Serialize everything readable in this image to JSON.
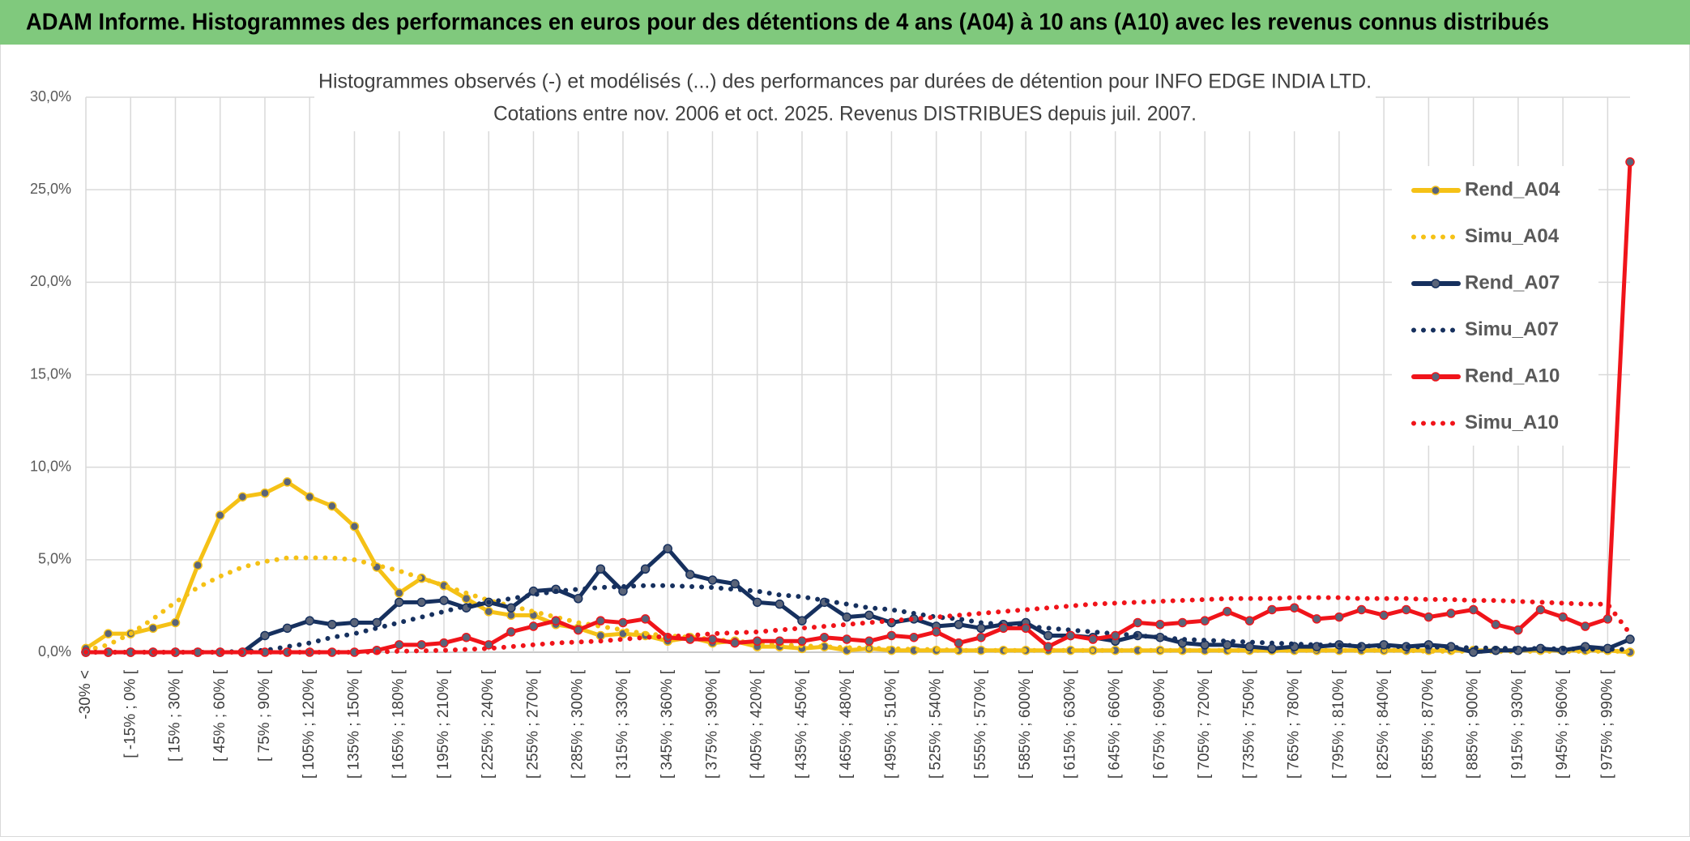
{
  "chart_data": {
    "type": "line",
    "page_title": "ADAM Informe. Histogrammes des performances en euros pour des détentions de 4 ans (A04) à 10 ans (A10) avec les revenus connus distribués",
    "title": "Histogrammes observés (-) et modélisés (...) des performances par durées de détention pour INFO EDGE INDIA LTD.",
    "subtitle": "Cotations entre nov. 2006 et oct. 2025. Revenus DISTRIBUES depuis juil. 2007.",
    "categories": [
      "-30% <",
      null,
      "[ -15% ; 0% [",
      null,
      "[ 15% ; 30% [",
      null,
      "[ 45% ; 60% [",
      null,
      "[ 75% ; 90% [",
      null,
      "[ 105% ; 120% [",
      null,
      "[ 135% ; 150% [",
      null,
      "[ 165% ; 180% [",
      null,
      "[ 195% ; 210% [",
      null,
      "[ 225% ; 240% [",
      null,
      "[ 255% ; 270% [",
      null,
      "[ 285% ; 300% [",
      null,
      "[ 315% ; 330% [",
      null,
      "[ 345% ; 360% [",
      null,
      "[ 375% ; 390% [",
      null,
      "[ 405% ; 420% [",
      null,
      "[ 435% ; 450% [",
      null,
      "[ 465% ; 480% [",
      null,
      "[ 495% ; 510% [",
      null,
      "[ 525% ; 540% [",
      null,
      "[ 555% ; 570% [",
      null,
      "[ 585% ; 600% [",
      null,
      "[ 615% ; 630% [",
      null,
      "[ 645% ; 660% [",
      null,
      "[ 675% ; 690% [",
      null,
      "[ 705% ; 720% [",
      null,
      "[ 735% ; 750% [",
      null,
      "[ 765% ; 780% [",
      null,
      "[ 795% ; 810% [",
      null,
      "[ 825% ; 840% [",
      null,
      "[ 855% ; 870% [",
      null,
      "[ 885% ; 900% [",
      null,
      "[ 915% ; 930% [",
      null,
      "[ 945% ; 960% [",
      null,
      "[ 975% ; 990% [",
      null
    ],
    "series": [
      {
        "name": "Rend_A04",
        "color": "#f5c116",
        "style": "solid",
        "values": [
          0.2,
          1.0,
          1.0,
          1.3,
          1.6,
          4.7,
          7.4,
          8.4,
          8.6,
          9.2,
          8.4,
          7.9,
          6.8,
          4.6,
          3.2,
          4.0,
          3.6,
          2.9,
          2.2,
          2.0,
          2.0,
          1.5,
          1.3,
          0.9,
          1.0,
          0.9,
          0.6,
          0.8,
          0.5,
          0.6,
          0.3,
          0.3,
          0.2,
          0.3,
          0.1,
          0.2,
          0.1,
          0.1,
          0.1,
          0.1,
          0.1,
          0.1,
          0.1,
          0.1,
          0.1,
          0.1,
          0.1,
          0.1,
          0.1,
          0.1,
          0.1,
          0.1,
          0.1,
          0.1,
          0.1,
          0.1,
          0.1,
          0.1,
          0.1,
          0.1,
          0.1,
          0.1,
          0.1,
          0.1,
          0.1,
          0.1,
          0.1,
          0.1,
          0.1,
          0.0
        ]
      },
      {
        "name": "Simu_A04",
        "color": "#f5c116",
        "style": "dotted",
        "values": [
          0.1,
          0.4,
          1.0,
          1.8,
          2.7,
          3.5,
          4.1,
          4.6,
          4.9,
          5.1,
          5.1,
          5.1,
          5.0,
          4.7,
          4.4,
          4.0,
          3.6,
          3.2,
          2.8,
          2.5,
          2.2,
          1.9,
          1.6,
          1.4,
          1.2,
          1.0,
          0.9,
          0.8,
          0.7,
          0.6,
          0.5,
          0.4,
          0.35,
          0.3,
          0.25,
          0.2,
          0.2,
          0.15,
          0.15,
          0.1,
          0.1,
          0.1,
          0.1,
          0.1,
          0.1,
          0.1,
          0.1,
          0.1,
          0.1,
          0.1,
          0.1,
          0.1,
          0.1,
          0.1,
          0.1,
          0.1,
          0.1,
          0.1,
          0.1,
          0.1,
          0.05,
          0.05,
          0.05,
          0.05,
          0.05,
          0.05,
          0.05,
          0.05,
          0.05,
          0.05
        ]
      },
      {
        "name": "Rend_A07",
        "color": "#16305e",
        "style": "solid",
        "values": [
          0,
          0,
          0,
          0,
          0,
          0,
          0,
          0,
          0.9,
          1.3,
          1.7,
          1.5,
          1.6,
          1.6,
          2.7,
          2.7,
          2.8,
          2.4,
          2.7,
          2.4,
          3.3,
          3.4,
          2.9,
          4.5,
          3.3,
          4.5,
          5.6,
          4.2,
          3.9,
          3.7,
          2.7,
          2.6,
          1.7,
          2.7,
          1.9,
          2.0,
          1.6,
          1.8,
          1.4,
          1.5,
          1.3,
          1.5,
          1.6,
          0.9,
          0.9,
          0.8,
          0.6,
          0.9,
          0.8,
          0.5,
          0.4,
          0.4,
          0.3,
          0.2,
          0.3,
          0.3,
          0.4,
          0.3,
          0.4,
          0.3,
          0.4,
          0.3,
          0.0,
          0.1,
          0.1,
          0.2,
          0.1,
          0.3,
          0.2,
          0.7
        ]
      },
      {
        "name": "Simu_A07",
        "color": "#16305e",
        "style": "dotted",
        "values": [
          0,
          0,
          0,
          0,
          0,
          0,
          0,
          0.05,
          0.1,
          0.3,
          0.5,
          0.8,
          1.0,
          1.3,
          1.6,
          1.9,
          2.2,
          2.5,
          2.7,
          2.9,
          3.1,
          3.3,
          3.4,
          3.5,
          3.55,
          3.6,
          3.6,
          3.55,
          3.5,
          3.4,
          3.3,
          3.1,
          3.0,
          2.8,
          2.6,
          2.4,
          2.3,
          2.1,
          1.9,
          1.8,
          1.6,
          1.5,
          1.4,
          1.3,
          1.2,
          1.1,
          1.0,
          0.9,
          0.8,
          0.7,
          0.65,
          0.6,
          0.55,
          0.5,
          0.45,
          0.4,
          0.38,
          0.35,
          0.32,
          0.3,
          0.28,
          0.26,
          0.24,
          0.22,
          0.2,
          0.2,
          0.18,
          0.17,
          0.16,
          0.15
        ]
      },
      {
        "name": "Rend_A10",
        "color": "#f0141a",
        "style": "solid",
        "values": [
          0,
          0,
          0,
          0,
          0,
          0,
          0,
          0,
          0,
          0,
          0,
          0,
          0,
          0.1,
          0.4,
          0.4,
          0.5,
          0.8,
          0.4,
          1.1,
          1.4,
          1.7,
          1.2,
          1.7,
          1.6,
          1.8,
          0.8,
          0.7,
          0.7,
          0.5,
          0.6,
          0.6,
          0.6,
          0.8,
          0.7,
          0.6,
          0.9,
          0.8,
          1.1,
          0.5,
          0.8,
          1.3,
          1.3,
          0.3,
          0.9,
          0.7,
          0.9,
          1.6,
          1.5,
          1.6,
          1.7,
          2.2,
          1.7,
          2.3,
          2.4,
          1.8,
          1.9,
          2.3,
          2.0,
          2.3,
          1.9,
          2.1,
          2.3,
          1.5,
          1.2,
          2.3,
          1.9,
          1.4,
          1.8,
          26.5
        ]
      },
      {
        "name": "Simu_A10",
        "color": "#f0141a",
        "style": "dotted",
        "values": [
          0,
          0,
          0,
          0,
          0,
          0,
          0,
          0,
          0,
          0,
          0,
          0,
          0,
          0.02,
          0.05,
          0.08,
          0.1,
          0.15,
          0.2,
          0.3,
          0.4,
          0.5,
          0.55,
          0.6,
          0.7,
          0.8,
          0.85,
          0.9,
          1.0,
          1.05,
          1.1,
          1.2,
          1.3,
          1.4,
          1.5,
          1.6,
          1.7,
          1.8,
          1.9,
          2.0,
          2.1,
          2.2,
          2.3,
          2.4,
          2.5,
          2.6,
          2.65,
          2.7,
          2.75,
          2.8,
          2.85,
          2.9,
          2.9,
          2.9,
          2.95,
          2.95,
          2.95,
          2.9,
          2.9,
          2.9,
          2.85,
          2.85,
          2.8,
          2.8,
          2.75,
          2.7,
          2.65,
          2.6,
          2.6,
          1.0
        ]
      }
    ],
    "ylim": [
      0,
      30
    ],
    "yticks": [
      {
        "value": 0,
        "label": "0,0%"
      },
      {
        "value": 5,
        "label": "5,0%"
      },
      {
        "value": 10,
        "label": "10,0%"
      },
      {
        "value": 15,
        "label": "15,0%"
      },
      {
        "value": 20,
        "label": "20,0%"
      },
      {
        "value": 25,
        "label": "25,0%"
      },
      {
        "value": 30,
        "label": "30,0%"
      }
    ],
    "grid": true,
    "legend": "right"
  }
}
